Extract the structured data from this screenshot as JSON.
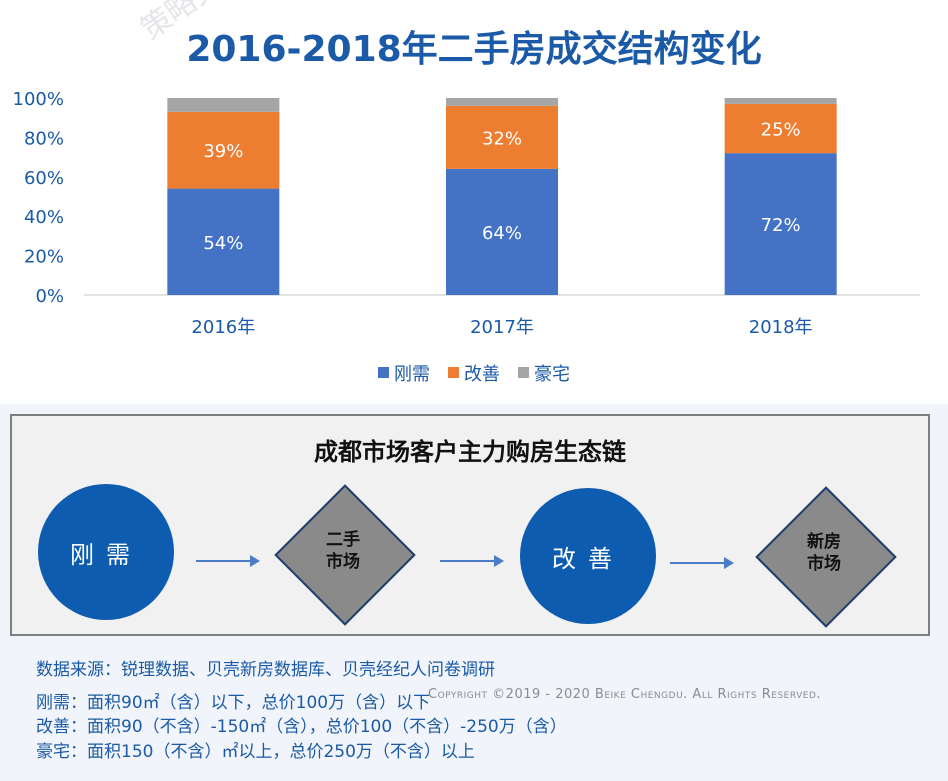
{
  "watermark": "策略文",
  "chart_data": {
    "type": "bar",
    "stacked": true,
    "title": "2016-2018年二手房成交结构变化",
    "categories": [
      "2016年",
      "2017年",
      "2018年"
    ],
    "series": [
      {
        "name": "刚需",
        "color": "#4472c4",
        "values": [
          54,
          64,
          72
        ],
        "labels": [
          "54%",
          "64%",
          "72%"
        ]
      },
      {
        "name": "改善",
        "color": "#ed7d31",
        "values": [
          39,
          32,
          25
        ],
        "labels": [
          "39%",
          "32%",
          "25%"
        ]
      },
      {
        "name": "豪宅",
        "color": "#a5a5a5",
        "values": [
          7,
          4,
          3
        ],
        "labels": [
          "",
          "",
          ""
        ]
      }
    ],
    "ylim": [
      0,
      100
    ],
    "yticks": [
      "0%",
      "20%",
      "40%",
      "60%",
      "80%",
      "100%"
    ],
    "grid": false,
    "legend_position": "bottom"
  },
  "chain": {
    "title": "成都市场客户主力购房生态链",
    "nodes": [
      {
        "label": "刚需",
        "shape": "circle"
      },
      {
        "label_line1": "二手",
        "label_line2": "市场",
        "shape": "diamond"
      },
      {
        "label": "改善",
        "shape": "circle"
      },
      {
        "label_line1": "新房",
        "label_line2": "市场",
        "shape": "diamond"
      }
    ]
  },
  "notes": {
    "source": "数据来源：锐理数据、贝壳新房数据库、贝壳经纪人问卷调研",
    "line_gangxu": "刚需：面积90㎡（含）以下，总价100万（含）以下",
    "line_gaishan": "改善：面积90（不含）-150㎡（含），总价100（不含）-250万（含）",
    "line_haozhai": "豪宅：面积150（不含）㎡以上，总价250万（不含）以上"
  },
  "copyright": "Copyright ©2019 - 2020 Beike Chengdu. All Rights Reserved."
}
